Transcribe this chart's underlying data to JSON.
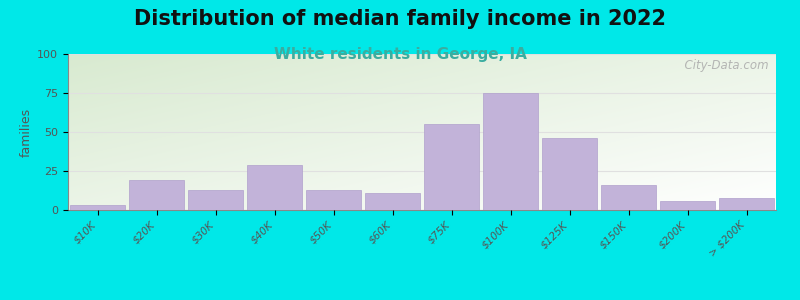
{
  "title": "Distribution of median family income in 2022",
  "subtitle": "White residents in George, IA",
  "ylabel": "families",
  "categories": [
    "$10K",
    "$20K",
    "$30K",
    "$40K",
    "$50K",
    "$60K",
    "$75K",
    "$100K",
    "$125K",
    "$150K",
    "$200K",
    "> $200K"
  ],
  "values": [
    3,
    19,
    13,
    29,
    13,
    11,
    55,
    75,
    46,
    16,
    6,
    8
  ],
  "bar_color": "#c2b3d9",
  "bar_edge_color": "#b0a0cc",
  "ylim": [
    0,
    100
  ],
  "yticks": [
    0,
    25,
    50,
    75,
    100
  ],
  "title_fontsize": 15,
  "subtitle_fontsize": 11,
  "subtitle_color": "#3aada0",
  "background_outer": "#00e8e8",
  "watermark": "  City-Data.com",
  "watermark_color": "#aaaaaa",
  "grid_color": "#e0e0e0"
}
